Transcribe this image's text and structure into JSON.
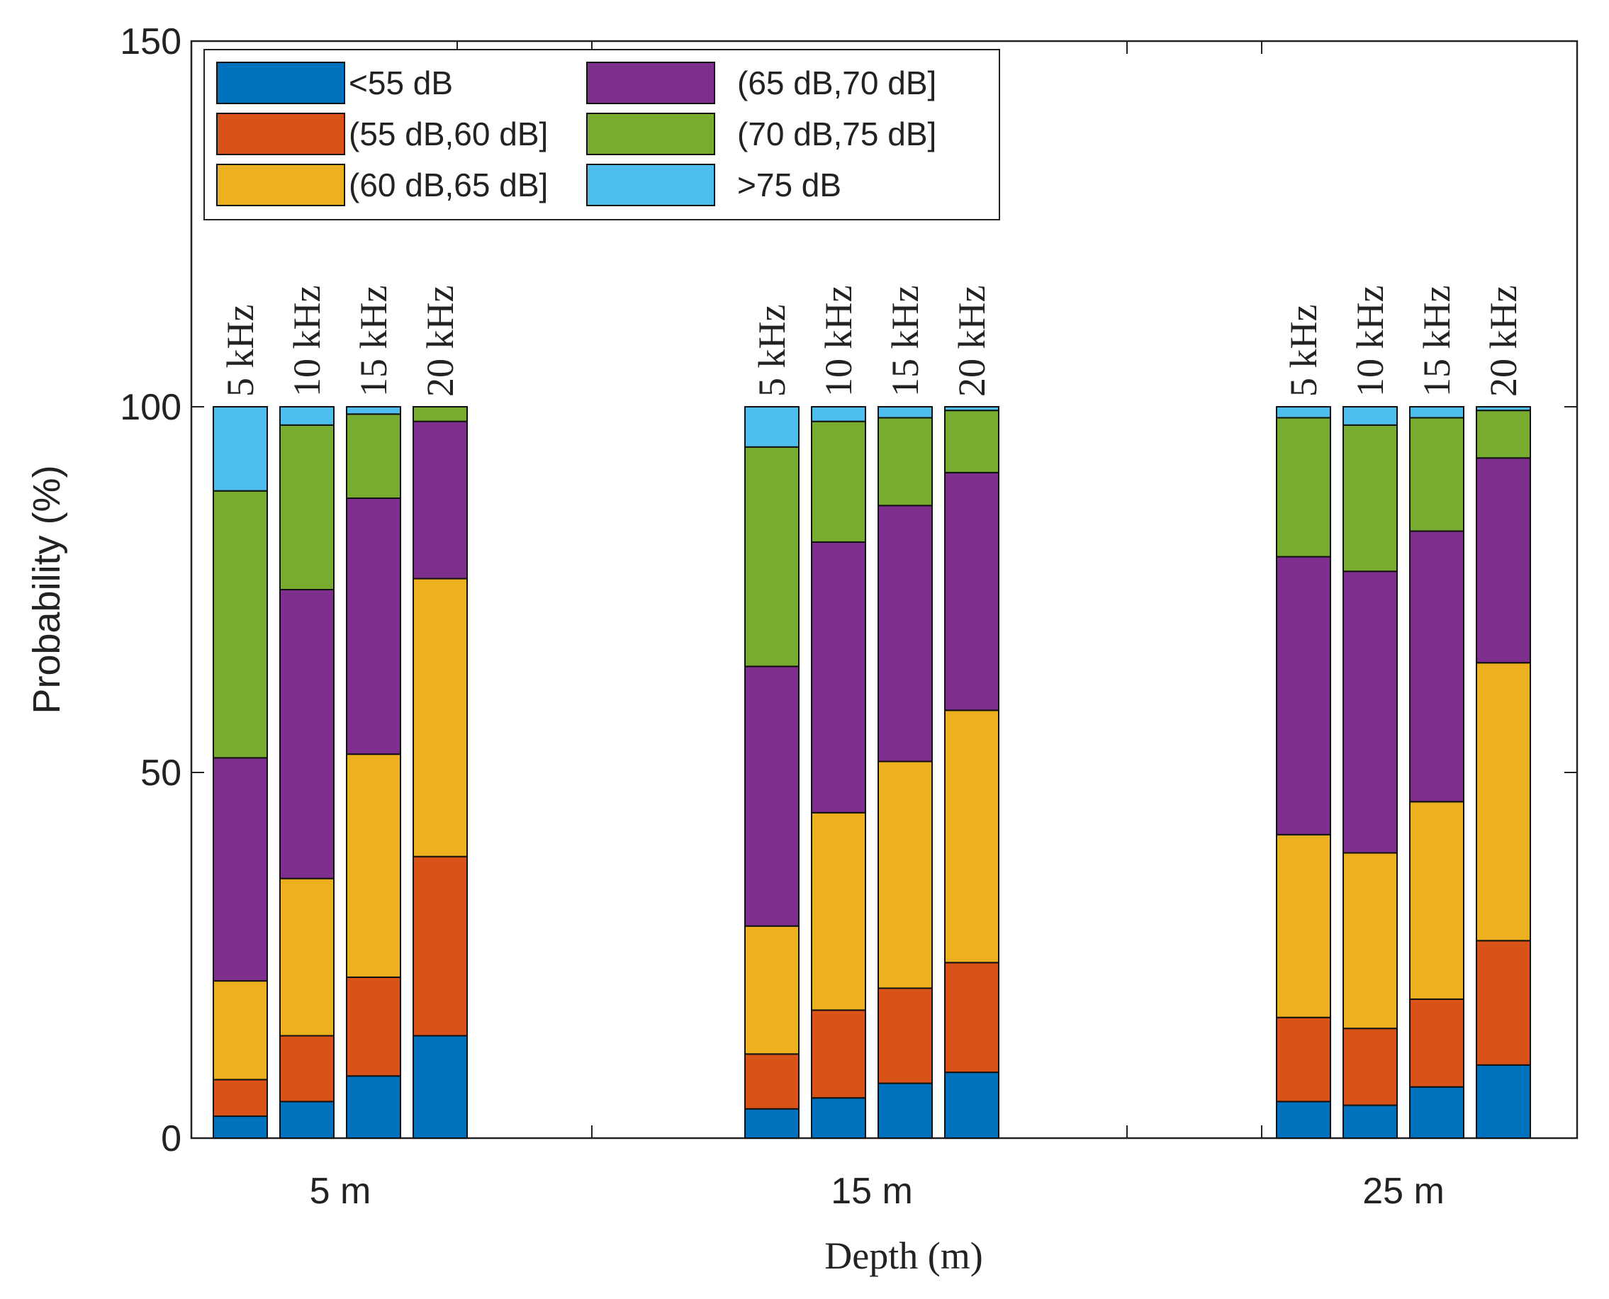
{
  "chart_data": {
    "type": "bar",
    "stacked": true,
    "title": "",
    "xlabel": "Depth (m)",
    "ylabel": "Probability (%)",
    "ylim": [
      0,
      150
    ],
    "yticks": [
      0,
      50,
      100,
      150
    ],
    "legend_position": "top-left",
    "groups": [
      {
        "label": "5 m",
        "bars": [
          {
            "freq": "5 kHz",
            "segments": [
              3,
              5,
              13.5,
              30.5,
              36.5,
              11.5
            ]
          },
          {
            "freq": "10 kHz",
            "segments": [
              5,
              9,
              21.5,
              39.5,
              22.5,
              2.5
            ]
          },
          {
            "freq": "15 kHz",
            "segments": [
              8.5,
              13.5,
              30.5,
              35,
              11.5,
              1
            ]
          },
          {
            "freq": "20 kHz",
            "segments": [
              14,
              24.5,
              38,
              21.5,
              2,
              0
            ]
          }
        ]
      },
      {
        "label": "15 m",
        "bars": [
          {
            "freq": "5 kHz",
            "segments": [
              4,
              7.5,
              17.5,
              35.5,
              30,
              5.5
            ]
          },
          {
            "freq": "10 kHz",
            "segments": [
              5.5,
              12,
              27,
              37,
              16.5,
              2
            ]
          },
          {
            "freq": "15 kHz",
            "segments": [
              7.5,
              13,
              31,
              35,
              12,
              1.5
            ]
          },
          {
            "freq": "20 kHz",
            "segments": [
              9,
              15,
              34.5,
              32.5,
              8.5,
              0.5
            ]
          }
        ]
      },
      {
        "label": "25 m",
        "bars": [
          {
            "freq": "5 kHz",
            "segments": [
              5,
              11.5,
              25,
              38,
              19,
              1.5
            ]
          },
          {
            "freq": "10 kHz",
            "segments": [
              4.5,
              10.5,
              24,
              38.5,
              20,
              2.5
            ]
          },
          {
            "freq": "15 kHz",
            "segments": [
              7,
              12,
              27,
              37,
              15.5,
              1.5
            ]
          },
          {
            "freq": "20 kHz",
            "segments": [
              10,
              17,
              38,
              28,
              6.5,
              0.5
            ]
          }
        ]
      }
    ],
    "series": [
      {
        "name": "<55 dB",
        "color": "#0072BD"
      },
      {
        "name": "(55 dB,60 dB]",
        "color": "#D95319"
      },
      {
        "name": "(60 dB,65 dB]",
        "color": "#EDB120"
      },
      {
        "name": "(65 dB,70 dB]",
        "color": "#7E2F8E"
      },
      {
        "name": "(70 dB,75 dB]",
        "color": "#77AC30"
      },
      {
        "name": ">75 dB",
        "color": "#4DBEEE"
      }
    ]
  }
}
